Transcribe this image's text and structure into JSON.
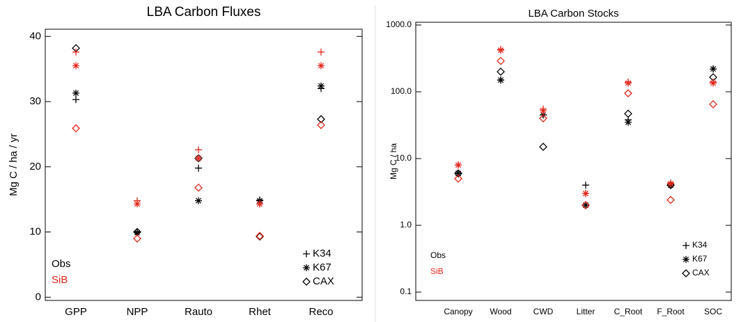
{
  "chart_data": [
    {
      "type": "scatter",
      "title": "LBA Carbon Fluxes",
      "y_label": "Mg C / ha / yr",
      "categories": [
        "GPP",
        "NPP",
        "Rauto",
        "Rhet",
        "Reco"
      ],
      "sites": [
        "K34",
        "K67",
        "CAX"
      ],
      "markers": [
        "plus",
        "asterisk",
        "diamond"
      ],
      "series": [
        {
          "name": "Obs",
          "color": "#000000",
          "values": [
            [
              30.3,
              10.0,
              19.8,
              14.9,
              32.0
            ],
            [
              31.3,
              9.9,
              14.8,
              14.8,
              32.4
            ],
            [
              38.2,
              10.0,
              21.3,
              9.3,
              27.3
            ]
          ]
        },
        {
          "name": "SiB",
          "color": "#e3261b",
          "values": [
            [
              37.6,
              14.8,
              22.6,
              14.3,
              37.6
            ],
            [
              35.5,
              14.3,
              21.3,
              14.3,
              35.5
            ],
            [
              25.9,
              9.0,
              16.8,
              9.4,
              26.4
            ]
          ]
        }
      ],
      "ylim": [
        -0.5,
        41.1
      ],
      "yticks": [
        0,
        10,
        20,
        30,
        40
      ],
      "log_scale": false
    },
    {
      "type": "scatter",
      "title": "LBA Carbon Stocks",
      "y_label": "Mg C / ha",
      "categories": [
        "Canopy",
        "Wood",
        "CWD",
        "Litter",
        "C_Root",
        "F_Root",
        "SOC"
      ],
      "sites": [
        "K34",
        "K67",
        "CAX"
      ],
      "markers": [
        "plus",
        "asterisk",
        "diamond"
      ],
      "series": [
        {
          "name": "Obs",
          "color": "#000000",
          "values": [
            [
              6.0,
              150,
              45,
              4.0,
              38,
              4.0,
              220
            ],
            [
              6.0,
              150,
              45,
              2.0,
              35,
              4.0,
              220
            ],
            [
              6.0,
              200,
              15,
              2.0,
              47,
              4.0,
              165
            ]
          ]
        },
        {
          "name": "SiB",
          "color": "#e3261b",
          "values": [
            [
              8.0,
              430,
              55,
              3.0,
              140,
              4.3,
              140
            ],
            [
              8.0,
              420,
              52,
              3.0,
              135,
              4.2,
              135
            ],
            [
              5.0,
              290,
              40,
              2.0,
              95,
              2.4,
              65
            ]
          ]
        }
      ],
      "ylim": [
        0.075,
        1100
      ],
      "yticks": [
        {
          "value": 0.1,
          "label": "0.1"
        },
        {
          "value": 1,
          "label": "1.0"
        },
        {
          "value": 10,
          "label": "10.0"
        },
        {
          "value": 100,
          "label": "100.0"
        },
        {
          "value": 1000,
          "label": "1000.0"
        }
      ],
      "log_scale": true
    }
  ]
}
